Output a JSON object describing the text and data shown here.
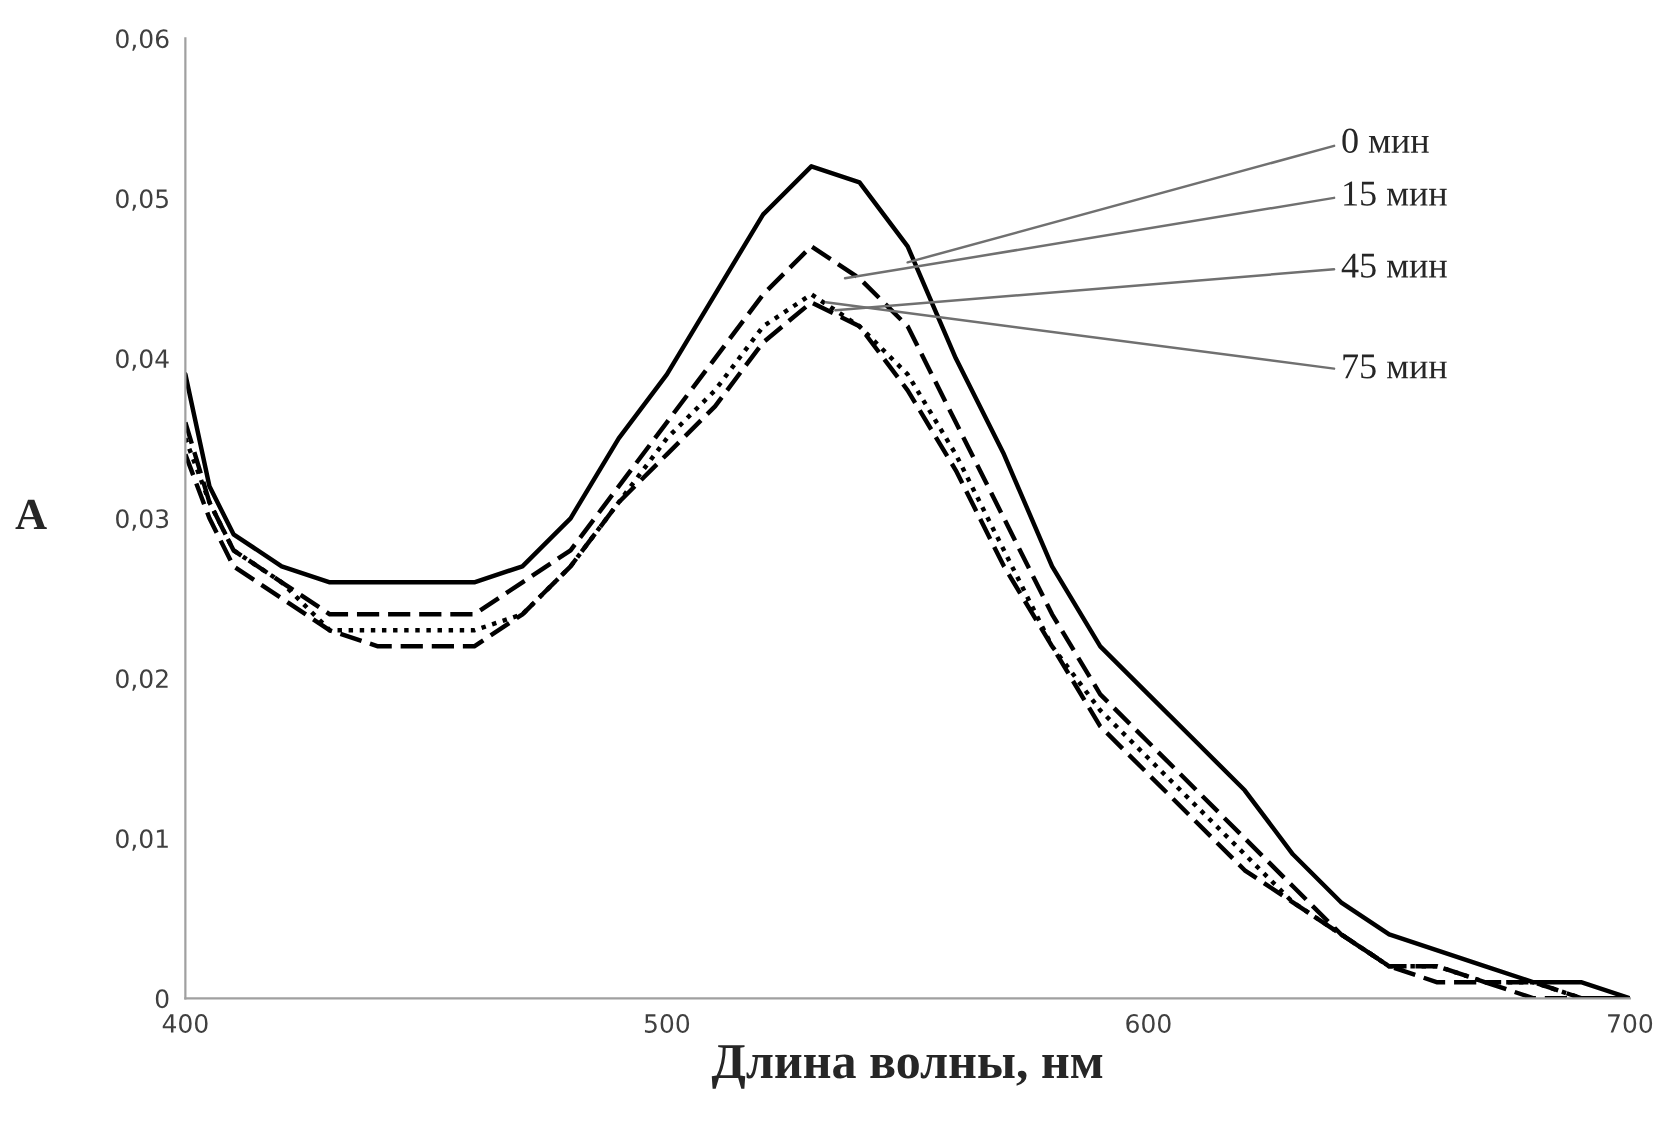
{
  "chart_data": {
    "type": "line",
    "xlabel": "Длина волны, нм",
    "ylabel": "A",
    "x": [
      400,
      405,
      410,
      420,
      430,
      440,
      450,
      460,
      470,
      480,
      490,
      500,
      510,
      520,
      530,
      540,
      550,
      560,
      570,
      580,
      590,
      600,
      610,
      620,
      630,
      640,
      650,
      660,
      670,
      680,
      690,
      700
    ],
    "series": [
      {
        "color": "#000000",
        "line_style": "solid",
        "values": [
          0.039,
          0.032,
          0.029,
          0.027,
          0.026,
          0.026,
          0.026,
          0.026,
          0.027,
          0.03,
          0.035,
          0.039,
          0.044,
          0.049,
          0.052,
          0.051,
          0.047,
          0.04,
          0.034,
          0.027,
          0.022,
          0.019,
          0.016,
          0.013,
          0.009,
          0.006,
          0.004,
          0.003,
          0.002,
          0.001,
          0.001,
          0.0
        ]
      },
      {
        "color": "#000000",
        "line_style": "dashed",
        "values": [
          0.036,
          0.031,
          0.028,
          0.026,
          0.024,
          0.024,
          0.024,
          0.024,
          0.026,
          0.028,
          0.032,
          0.036,
          0.04,
          0.044,
          0.047,
          0.045,
          0.042,
          0.036,
          0.03,
          0.024,
          0.019,
          0.016,
          0.013,
          0.01,
          0.007,
          0.004,
          0.002,
          0.002,
          0.001,
          0.001,
          0.0,
          0.0
        ]
      },
      {
        "color": "#000000",
        "line_style": "dotted",
        "values": [
          0.035,
          0.031,
          0.028,
          0.026,
          0.023,
          0.023,
          0.023,
          0.023,
          0.024,
          0.027,
          0.031,
          0.035,
          0.038,
          0.042,
          0.044,
          0.042,
          0.039,
          0.034,
          0.028,
          0.022,
          0.018,
          0.015,
          0.012,
          0.009,
          0.006,
          0.004,
          0.002,
          0.002,
          0.001,
          0.001,
          0.0,
          0.0
        ]
      },
      {
        "color": "#000000",
        "line_style": "dashed",
        "values": [
          0.034,
          0.03,
          0.027,
          0.025,
          0.023,
          0.022,
          0.022,
          0.022,
          0.024,
          0.027,
          0.031,
          0.034,
          0.037,
          0.041,
          0.0435,
          0.042,
          0.038,
          0.033,
          0.027,
          0.022,
          0.017,
          0.014,
          0.011,
          0.008,
          0.006,
          0.004,
          0.002,
          0.001,
          0.001,
          0.0,
          0.0,
          0.0
        ]
      }
    ],
    "xlim": [
      400,
      700
    ],
    "xticks": [
      400,
      500,
      600,
      700
    ],
    "ylim": [
      0,
      0.06
    ],
    "yticks": [
      0,
      {
        "value": 0.01,
        "label": "0,01"
      },
      {
        "value": 0.02,
        "label": "0,02"
      },
      {
        "value": 0.03,
        "label": "0,03"
      },
      {
        "value": 0.04,
        "label": "0,04"
      },
      {
        "value": 0.05,
        "label": "0,05"
      },
      {
        "value": 0.06,
        "label": "0,06"
      }
    ],
    "grid": false,
    "annotations": [
      {
        "text": "0 мин",
        "x": 550,
        "y": 0.046
      },
      {
        "text": "15 мин",
        "x": 537,
        "y": 0.045
      },
      {
        "text": "45 мин",
        "x": 535,
        "y": 0.043
      },
      {
        "text": "75 мин",
        "x": 533,
        "y": 0.0435
      }
    ]
  }
}
